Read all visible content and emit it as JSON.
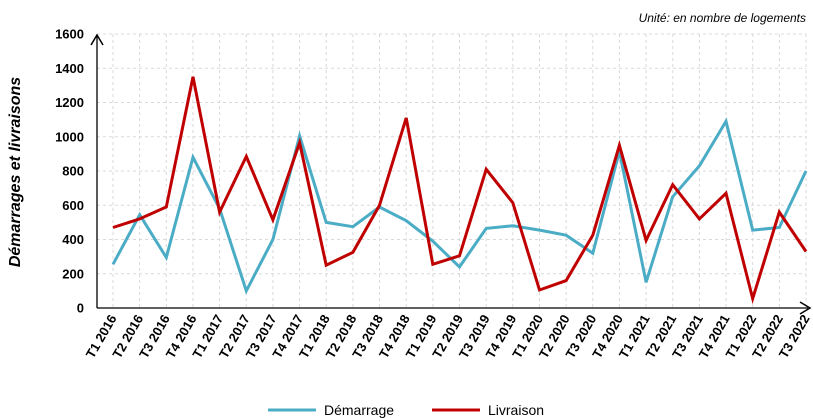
{
  "chart_data": {
    "type": "line",
    "annotation": "Unité: en nombre de logements",
    "ylabel": "Démarrages et livraisons",
    "xlabel": "",
    "ylim": [
      0,
      1600
    ],
    "yticks": [
      0,
      200,
      400,
      600,
      800,
      1000,
      1200,
      1400,
      1600
    ],
    "grid": true,
    "legend_position": "bottom",
    "categories": [
      "T1 2016",
      "T2 2016",
      "T3 2016",
      "T4 2016",
      "T1 2017",
      "T2 2017",
      "T3 2017",
      "T4 2017",
      "T1 2018",
      "T2 2018",
      "T3 2018",
      "T4 2018",
      "T1 2019",
      "T2 2019",
      "T3 2019",
      "T4 2019",
      "T1 2020",
      "T2 2020",
      "T3 2020",
      "T4 2020",
      "T1 2021",
      "T2 2021",
      "T3 2021",
      "T4 2021",
      "T1 2022",
      "T2 2022",
      "T3 2022"
    ],
    "series": [
      {
        "name": "Démarrage",
        "color": "#4bacc6",
        "values": [
          255,
          545,
          295,
          880,
          580,
          100,
          400,
          1005,
          500,
          475,
          590,
          510,
          390,
          240,
          465,
          480,
          455,
          425,
          320,
          915,
          150,
          650,
          830,
          1090,
          455,
          470,
          800
        ]
      },
      {
        "name": "Livraison",
        "color": "#c00000",
        "values": [
          470,
          520,
          590,
          1350,
          560,
          885,
          515,
          965,
          250,
          325,
          600,
          1110,
          255,
          305,
          810,
          615,
          105,
          160,
          425,
          950,
          395,
          720,
          520,
          670,
          55,
          560,
          330
        ]
      }
    ]
  }
}
